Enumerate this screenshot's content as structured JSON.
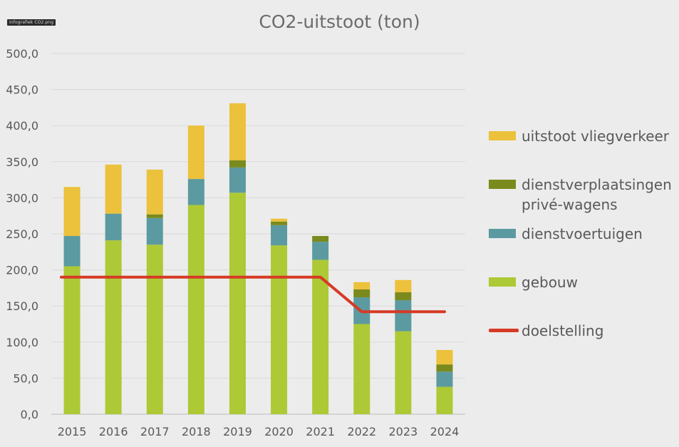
{
  "file_tag": "Infografiek CO2.png",
  "chart_data": {
    "type": "bar",
    "stacked": true,
    "title": "CO2-uitstoot (ton)",
    "categories": [
      "2015",
      "2016",
      "2017",
      "2018",
      "2019",
      "2020",
      "2021",
      "2022",
      "2023",
      "2024"
    ],
    "ylim": [
      0,
      500
    ],
    "yticks": [
      "0,0",
      "50,0",
      "100,0",
      "150,0",
      "200,0",
      "250,0",
      "300,0",
      "350,0",
      "400,0",
      "450,0",
      "500,0"
    ],
    "grid": true,
    "legend_position": "right",
    "series": [
      {
        "name": "gebouw",
        "color": "#adc935",
        "values": [
          205,
          241,
          235,
          290,
          307,
          234,
          214,
          125,
          115,
          38
        ]
      },
      {
        "name": "dienstvoertuigen",
        "color": "#5b9aa0",
        "values": [
          42,
          37,
          37,
          36,
          35,
          28,
          25,
          37,
          43,
          21
        ]
      },
      {
        "name": "dienstverplaatsingen privé-wagens",
        "label_lines": [
          "dienstverplaatsingen",
          "privé-wagens"
        ],
        "color": "#7a8a1c",
        "values": [
          0,
          0,
          5,
          0,
          10,
          5,
          8,
          11,
          11,
          10
        ]
      },
      {
        "name": "uitstoot vliegverkeer",
        "color": "#ecc13b",
        "values": [
          68,
          68,
          62,
          74,
          79,
          4,
          0,
          10,
          17,
          20
        ]
      }
    ],
    "target_line": {
      "name": "doelstelling",
      "color": "#d63a25",
      "values": [
        190,
        190,
        190,
        190,
        190,
        190,
        190,
        142,
        142,
        142
      ]
    },
    "legend_order": [
      "uitstoot vliegverkeer",
      "dienstverplaatsingen privé-wagens",
      "dienstvoertuigen",
      "gebouw",
      "doelstelling"
    ]
  }
}
